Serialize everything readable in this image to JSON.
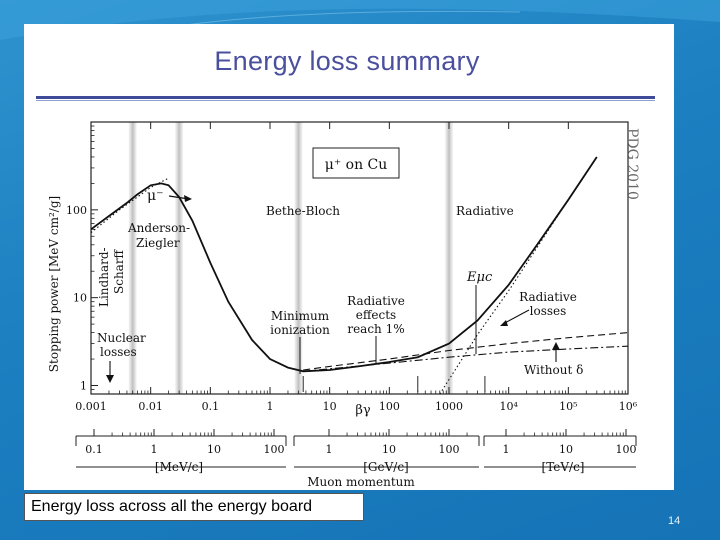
{
  "slide": {
    "title": "Energy loss summary",
    "caption": "Energy loss across all the energy board",
    "page_number": "14"
  },
  "chart_data": {
    "type": "line",
    "ylabel": "Stopping power [MeV cm²/g]",
    "xlabel": "βγ",
    "x_scale": "log",
    "y_scale": "log",
    "xlim": [
      0.001,
      1000000
    ],
    "ylim": [
      0.8,
      1000
    ],
    "x_ticks": [
      "0.001",
      "0.01",
      "0.1",
      "1",
      "10",
      "100",
      "1000",
      "10⁴",
      "10⁵",
      "10⁶"
    ],
    "y_ticks": [
      "1",
      "10",
      "100"
    ],
    "momentum_ticks": {
      "MeV": [
        "0.1",
        "1",
        "10",
        "100"
      ],
      "GeV": [
        "1",
        "10",
        "100"
      ],
      "TeV": [
        "1",
        "10",
        "100"
      ]
    },
    "momentum_units": {
      "MeV": "[MeV/c]",
      "GeV": "[GeV/c]",
      "TeV": "[TeV/c]"
    },
    "momentum_label": "Muon momentum",
    "watermark": "PDG 2010",
    "legend": "μ⁺ on Cu",
    "bands": [
      0.005,
      0.03,
      3,
      1000
    ],
    "marker_lines": [
      3.6,
      300,
      4000
    ],
    "series": [
      {
        "style": "solid",
        "x": [
          0.001,
          0.002,
          0.004,
          0.006,
          0.01,
          0.015,
          0.02,
          0.03,
          0.05,
          0.1,
          0.2,
          0.5,
          1,
          2,
          3.6,
          10,
          30,
          100,
          300,
          1000,
          3000,
          10000,
          30000,
          100000,
          300000
        ],
        "y": [
          60,
          85,
          120,
          150,
          190,
          200,
          190,
          140,
          75,
          25,
          9,
          3.3,
          2.0,
          1.6,
          1.45,
          1.5,
          1.65,
          1.85,
          2.1,
          3.0,
          5.5,
          14,
          40,
          130,
          400
        ]
      },
      {
        "style": "dashed",
        "x": [
          3.6,
          10,
          100,
          1000,
          10000,
          100000,
          1000000
        ],
        "y": [
          1.5,
          1.65,
          2.0,
          2.5,
          3.0,
          3.5,
          4.0
        ]
      },
      {
        "style": "dashdot",
        "x": [
          3.6,
          10,
          100,
          1000,
          10000,
          100000,
          1000000
        ],
        "y": [
          1.45,
          1.55,
          1.8,
          2.1,
          2.4,
          2.6,
          2.8
        ]
      },
      {
        "style": "dotted",
        "x": [
          0.001,
          0.003,
          0.006,
          0.01,
          0.02
        ],
        "y": [
          55,
          100,
          140,
          180,
          230
        ]
      },
      {
        "style": "dotted",
        "x": [
          700,
          1500,
          3000,
          10000,
          100000,
          300000
        ],
        "y": [
          0.8,
          1.8,
          3.8,
          12,
          130,
          400
        ]
      }
    ],
    "annotations": {
      "anderson_l1": "Anderson-",
      "anderson_l2": "Ziegler",
      "lindhard_l1": "Lindhard-",
      "lindhard_l2": "Scharff",
      "bethe": "Bethe-Bloch",
      "radiative": "Radiative",
      "mu_minus": "μ⁻",
      "min_ion_l1": "Minimum",
      "min_ion_l2": "ionization",
      "rad_eff_l1": "Radiative",
      "rad_eff_l2": "effects",
      "rad_eff_l3": "reach 1%",
      "rad_loss_l1": "Radiative",
      "rad_loss_l2": "losses",
      "nuclear_l1": "Nuclear",
      "nuclear_l2": "losses",
      "without_delta": "Without δ",
      "emu_c": "Eμc"
    }
  }
}
